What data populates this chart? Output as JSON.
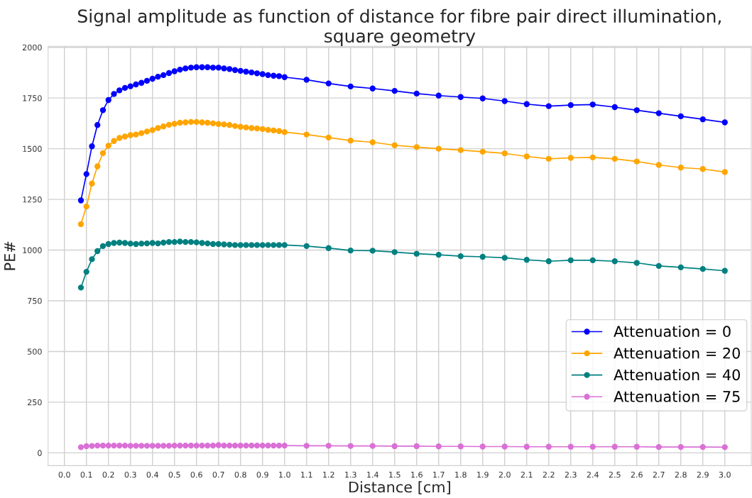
{
  "chart_data": {
    "type": "line",
    "title": "Signal amplitude as function of distance for fibre pair direct illumination,\nsquare geometry",
    "xlabel": "Distance [cm]",
    "ylabel": "PE#",
    "x": [
      0.075,
      0.1,
      0.125,
      0.15,
      0.175,
      0.2,
      0.225,
      0.25,
      0.275,
      0.3,
      0.325,
      0.35,
      0.375,
      0.4,
      0.425,
      0.45,
      0.475,
      0.5,
      0.525,
      0.55,
      0.575,
      0.6,
      0.625,
      0.65,
      0.675,
      0.7,
      0.725,
      0.75,
      0.775,
      0.8,
      0.825,
      0.85,
      0.875,
      0.9,
      0.925,
      0.95,
      0.975,
      1.0,
      1.1,
      1.2,
      1.3,
      1.4,
      1.5,
      1.6,
      1.7,
      1.8,
      1.9,
      2.0,
      2.1,
      2.2,
      2.3,
      2.4,
      2.5,
      2.6,
      2.7,
      2.8,
      2.9,
      3.0
    ],
    "series": [
      {
        "name": "Attenuation = 0",
        "color": "#0000ff",
        "values": [
          1245,
          1375,
          1512,
          1617,
          1690,
          1740,
          1770,
          1788,
          1800,
          1808,
          1817,
          1825,
          1835,
          1845,
          1855,
          1863,
          1873,
          1882,
          1890,
          1896,
          1900,
          1902,
          1902,
          1902,
          1900,
          1900,
          1896,
          1893,
          1888,
          1884,
          1880,
          1876,
          1872,
          1868,
          1863,
          1860,
          1858,
          1853,
          1840,
          1822,
          1807,
          1797,
          1785,
          1772,
          1762,
          1755,
          1748,
          1735,
          1720,
          1710,
          1715,
          1718,
          1705,
          1690,
          1675,
          1660,
          1645,
          1630
        ]
      },
      {
        "name": "Attenuation = 20",
        "color": "#ffa500",
        "values": [
          1128,
          1215,
          1328,
          1413,
          1478,
          1515,
          1538,
          1553,
          1560,
          1567,
          1570,
          1577,
          1585,
          1592,
          1602,
          1610,
          1618,
          1623,
          1628,
          1630,
          1632,
          1632,
          1630,
          1628,
          1625,
          1622,
          1620,
          1617,
          1612,
          1608,
          1605,
          1602,
          1600,
          1597,
          1593,
          1590,
          1587,
          1582,
          1570,
          1555,
          1540,
          1532,
          1517,
          1508,
          1500,
          1493,
          1485,
          1477,
          1462,
          1450,
          1455,
          1457,
          1450,
          1437,
          1420,
          1407,
          1400,
          1385
        ]
      },
      {
        "name": "Attenuation = 40",
        "color": "#008080",
        "values": [
          815,
          893,
          955,
          995,
          1020,
          1030,
          1035,
          1037,
          1035,
          1032,
          1030,
          1032,
          1033,
          1035,
          1033,
          1037,
          1040,
          1040,
          1042,
          1040,
          1040,
          1038,
          1035,
          1033,
          1030,
          1030,
          1028,
          1027,
          1025,
          1025,
          1025,
          1025,
          1025,
          1025,
          1025,
          1025,
          1025,
          1025,
          1020,
          1010,
          998,
          997,
          990,
          982,
          977,
          970,
          967,
          962,
          952,
          945,
          950,
          950,
          945,
          937,
          922,
          915,
          907,
          898
        ]
      },
      {
        "name": "Attenuation = 75",
        "color": "#da70d6",
        "values": [
          28,
          33,
          34,
          36,
          36,
          36,
          36,
          36,
          36,
          35,
          35,
          35,
          35,
          35,
          35,
          35,
          35,
          36,
          36,
          36,
          36,
          36,
          36,
          36,
          36,
          38,
          36,
          36,
          36,
          36,
          36,
          36,
          36,
          36,
          36,
          36,
          36,
          36,
          35,
          35,
          34,
          34,
          33,
          33,
          32,
          32,
          31,
          31,
          30,
          30,
          30,
          30,
          30,
          30,
          29,
          29,
          29,
          28
        ]
      }
    ],
    "xlim": [
      -0.074,
      3.12
    ],
    "ylim": [
      -63,
      2005
    ],
    "xticks": [
      {
        "value": 0,
        "label": "0.0"
      },
      0.1,
      0.2,
      0.3,
      0.4,
      0.5,
      0.6,
      0.7,
      0.8,
      0.9,
      {
        "value": 1,
        "label": "1.0"
      },
      1.1,
      1.2,
      1.3,
      1.4,
      1.5,
      1.6,
      1.7,
      1.8,
      1.9,
      {
        "value": 2,
        "label": "2.0"
      },
      2.1,
      2.2,
      2.3,
      2.4,
      2.5,
      2.6,
      2.7,
      2.8,
      2.9,
      {
        "value": 3,
        "label": "3.0"
      }
    ],
    "yticks": [
      0,
      250,
      500,
      750,
      1000,
      1250,
      1500,
      1750,
      2000
    ],
    "grid": true,
    "legend": "bottom right",
    "marker": "circle",
    "line_style": "solid"
  }
}
